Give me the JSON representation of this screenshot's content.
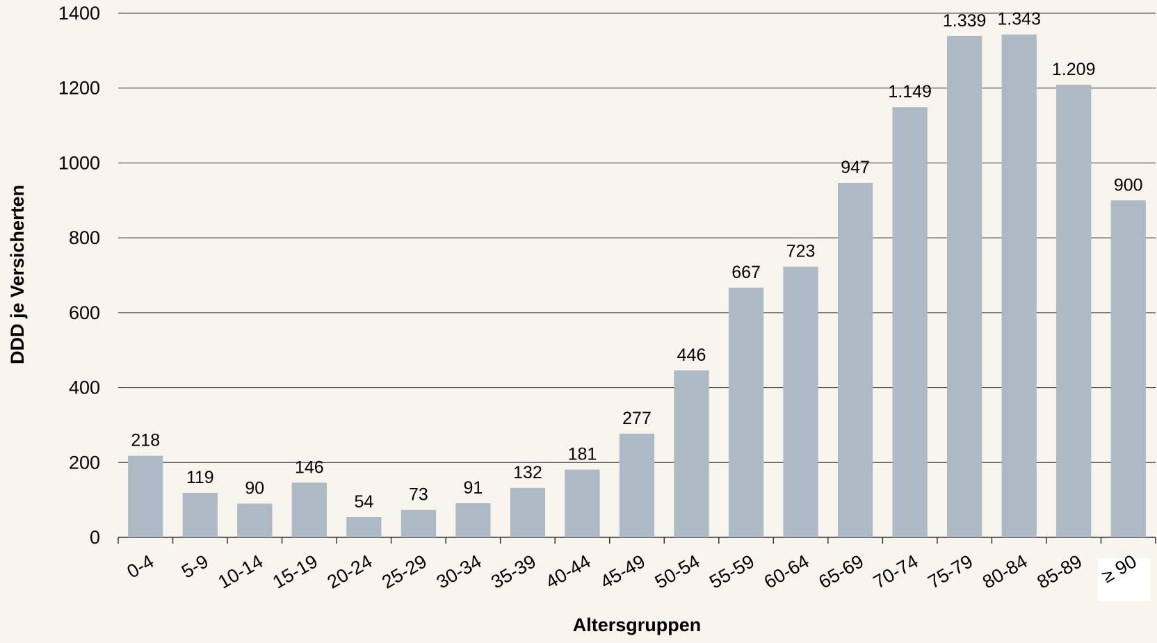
{
  "chart_data": {
    "type": "bar",
    "x_label": "Altersgruppen",
    "y_label": "DDD je Versicherten",
    "categories": [
      "0-4",
      "5-9",
      "10-14",
      "15-19",
      "20-24",
      "25-29",
      "30-34",
      "35-39",
      "40-44",
      "45-49",
      "50-54",
      "55-59",
      "60-64",
      "65-69",
      "70-74",
      "75-79",
      "80-84",
      "85-89",
      "≥ 90"
    ],
    "values": [
      218,
      119,
      90,
      146,
      54,
      73,
      91,
      132,
      181,
      277,
      446,
      667,
      723,
      947,
      1149,
      1339,
      1343,
      1209,
      900
    ],
    "value_labels": [
      "218",
      "119",
      "90",
      "146",
      "54",
      "73",
      "91",
      "132",
      "181",
      "277",
      "446",
      "667",
      "723",
      "947",
      "1.149",
      "1.339",
      "1.343",
      "1.209",
      "900"
    ],
    "color": "#adb9c4",
    "ylim": [
      0,
      1400
    ],
    "yticks": [
      0,
      200,
      400,
      600,
      800,
      1000,
      1200,
      1400
    ],
    "grid": true
  }
}
